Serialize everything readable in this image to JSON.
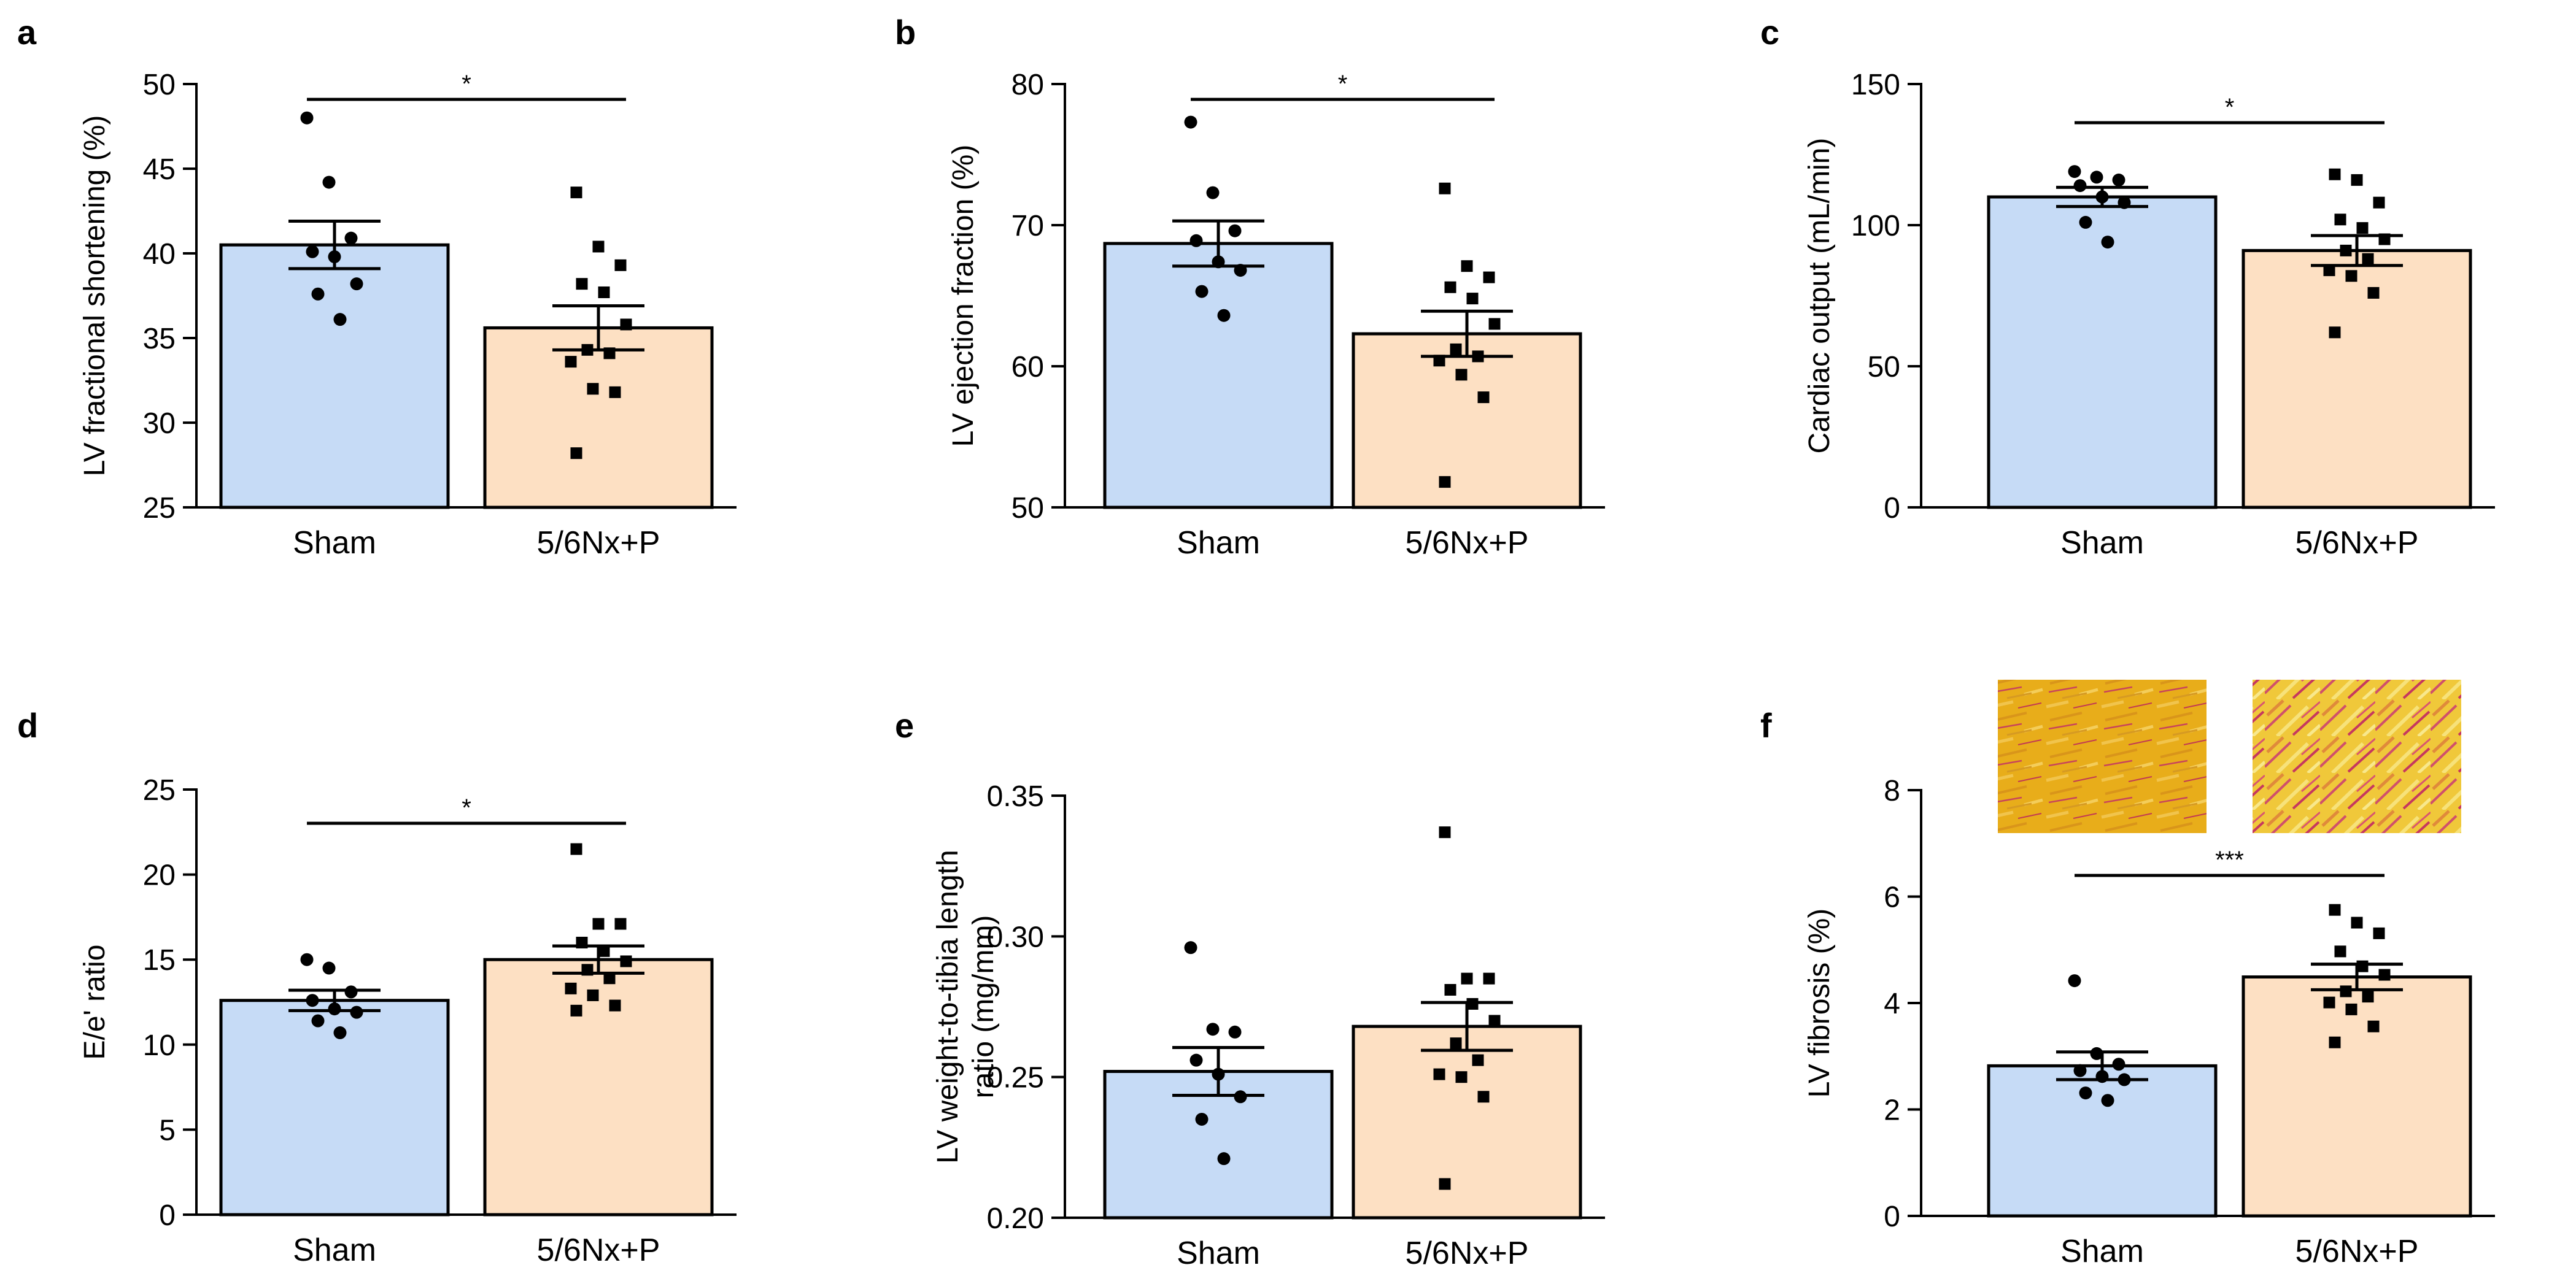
{
  "colors": {
    "sham": "#c6dbf6",
    "treated": "#fde0c3",
    "stroke": "#000000"
  },
  "chart_data": [
    {
      "panel": "a",
      "type": "bar",
      "categories": [
        "Sham",
        "5/6Nx+P"
      ],
      "values": [
        40.5,
        35.6
      ],
      "sem": [
        1.4,
        1.3
      ],
      "points": [
        [
          48.0,
          44.2,
          40.9,
          40.1,
          39.8,
          38.2,
          37.6,
          36.1
        ],
        [
          43.6,
          40.4,
          39.3,
          38.2,
          37.7,
          35.8,
          34.3,
          34.1,
          33.6,
          32.0,
          31.8,
          28.2
        ]
      ],
      "ylabel": "LV fractional shortening (%)",
      "ylim": [
        25,
        50
      ],
      "yticks": [
        25,
        30,
        35,
        40,
        45,
        50
      ],
      "tick_labels": [
        "25",
        "30",
        "35",
        "40",
        "45",
        "50"
      ],
      "significance": "*"
    },
    {
      "panel": "b",
      "type": "bar",
      "categories": [
        "Sham",
        "5/6Nx+P"
      ],
      "values": [
        68.7,
        62.3
      ],
      "sem": [
        1.6,
        1.6
      ],
      "points": [
        [
          77.3,
          72.3,
          69.6,
          68.9,
          67.4,
          66.8,
          65.3,
          63.6
        ],
        [
          72.6,
          67.1,
          66.3,
          65.6,
          64.8,
          63.0,
          61.2,
          60.7,
          60.4,
          59.4,
          57.8,
          51.8
        ]
      ],
      "ylabel": "LV ejection fraction (%)",
      "ylim": [
        50,
        80
      ],
      "yticks": [
        50,
        60,
        70,
        80
      ],
      "tick_labels": [
        "50",
        "60",
        "70",
        "80"
      ],
      "significance": "*"
    },
    {
      "panel": "c",
      "type": "bar",
      "categories": [
        "Sham",
        "5/6Nx+P"
      ],
      "values": [
        110,
        91
      ],
      "sem": [
        3.4,
        5.3
      ],
      "points": [
        [
          119,
          117,
          116,
          114,
          110,
          108,
          101,
          94
        ],
        [
          118,
          116,
          108,
          102,
          99,
          95,
          91,
          88,
          84,
          82,
          76,
          62
        ]
      ],
      "ylabel": "Cardiac output (mL/min)",
      "ylim": [
        0,
        150
      ],
      "yticks": [
        0,
        50,
        100,
        150
      ],
      "tick_labels": [
        "0",
        "50",
        "100",
        "150"
      ],
      "significance": "*"
    },
    {
      "panel": "d",
      "type": "bar",
      "categories": [
        "Sham",
        "5/6Nx+P"
      ],
      "values": [
        12.6,
        15.0
      ],
      "sem": [
        0.6,
        0.8
      ],
      "points": [
        [
          15.0,
          14.5,
          13.1,
          12.6,
          12.1,
          11.9,
          11.4,
          10.7
        ],
        [
          21.5,
          17.1,
          17.1,
          16.0,
          15.5,
          14.9,
          14.4,
          13.9,
          13.3,
          12.9,
          12.3,
          12.0
        ]
      ],
      "ylabel": "E/e' ratio",
      "ylim": [
        0,
        25
      ],
      "yticks": [
        0,
        5,
        10,
        15,
        20,
        25
      ],
      "tick_labels": [
        "0",
        "5",
        "10",
        "15",
        "20",
        "25"
      ],
      "significance": "*"
    },
    {
      "panel": "e",
      "type": "bar",
      "categories": [
        "Sham",
        "5/6Nx+P"
      ],
      "values": [
        0.252,
        0.268
      ],
      "sem": [
        0.0085,
        0.0085
      ],
      "points": [
        [
          0.296,
          0.267,
          0.266,
          0.256,
          0.251,
          0.243,
          0.235,
          0.221
        ],
        [
          0.337,
          0.285,
          0.285,
          0.281,
          0.276,
          0.27,
          0.262,
          0.256,
          0.251,
          0.25,
          0.243,
          0.212
        ]
      ],
      "ylabel": "LV weight-to-tibia length ratio (mg/mm)",
      "ylabel_lines": [
        "LV weight-to-tibia length",
        "ratio (mg/mm)"
      ],
      "ylim": [
        0.2,
        0.35
      ],
      "yticks": [
        0.2,
        0.25,
        0.3,
        0.35
      ],
      "tick_labels": [
        "0.20",
        "0.25",
        "0.30",
        "0.35"
      ],
      "significance": ""
    },
    {
      "panel": "f",
      "type": "bar",
      "categories": [
        "Sham",
        "5/6Nx+P"
      ],
      "values": [
        2.82,
        4.49
      ],
      "sem": [
        0.26,
        0.24
      ],
      "points": [
        [
          4.42,
          3.05,
          2.85,
          2.73,
          2.62,
          2.56,
          2.31,
          2.17
        ],
        [
          5.75,
          5.51,
          5.31,
          4.97,
          4.69,
          4.53,
          4.22,
          4.12,
          4.01,
          3.88,
          3.56,
          3.26
        ]
      ],
      "ylabel": "LV fibrosis (%)",
      "ylim": [
        0,
        8
      ],
      "yticks": [
        0,
        2,
        4,
        6,
        8
      ],
      "tick_labels": [
        "0",
        "2",
        "4",
        "6",
        "8"
      ],
      "significance": "***",
      "insets": [
        "sham-histology",
        "treated-histology"
      ]
    }
  ]
}
